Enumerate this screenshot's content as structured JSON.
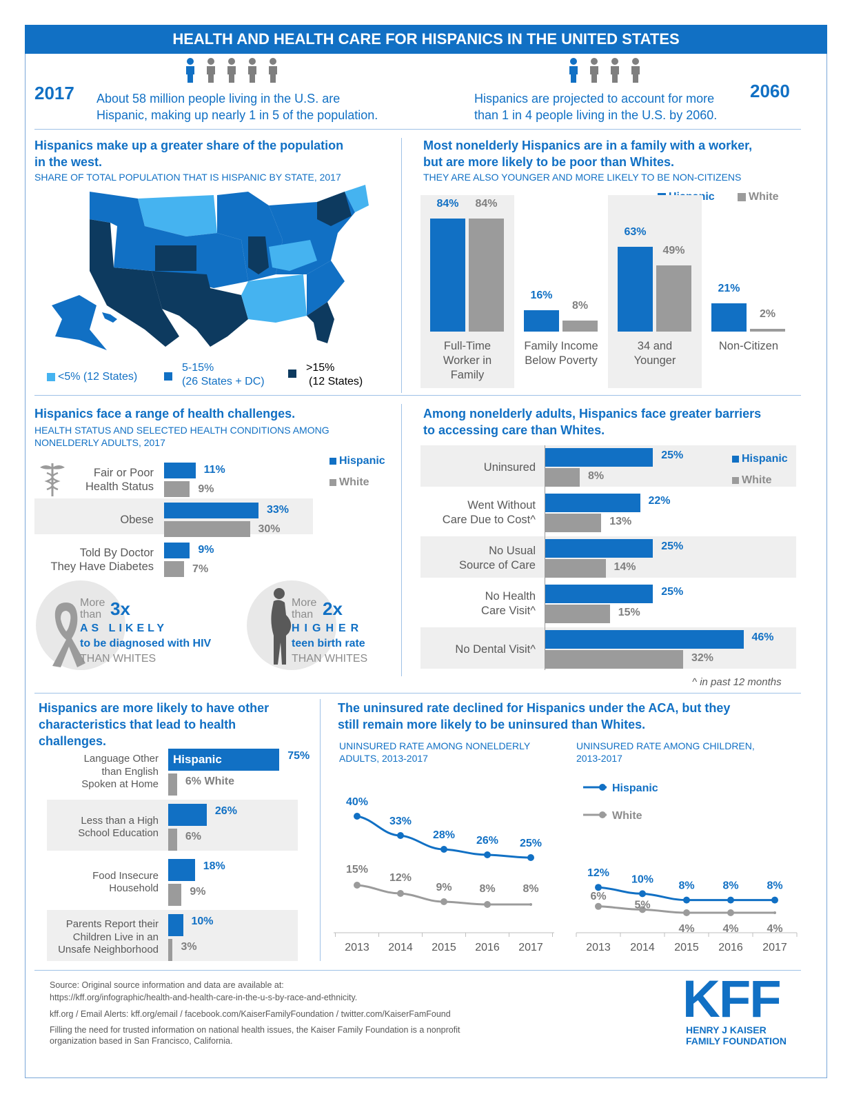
{
  "header": {
    "title": "HEALTH AND HEALTH CARE FOR HISPANICS IN THE UNITED STATES"
  },
  "intro": {
    "left_year": "2017",
    "left_text_1": "About 58 million people living in the U.S. are",
    "left_text_2": "Hispanic, making up nearly 1 in 5 of the population.",
    "right_year": "2060",
    "right_text_1": "Hispanics are projected to account for more",
    "right_text_2": "than 1 in 4 people living in the U.S. by 2060."
  },
  "map_section": {
    "title_1": "Hispanics make up a greater share of the population",
    "title_2": "in the west.",
    "subtitle": "SHARE OF TOTAL POPULATION THAT IS HISPANIC BY STATE, 2017",
    "legend": [
      {
        "label": "<5% (12 States)",
        "color": "#45b3f0"
      },
      {
        "label_1": "5-15%",
        "label_2": "(26 States + DC)",
        "color": "#1170c4"
      },
      {
        "label_1": ">15%",
        "label_2": "(12 States)",
        "color": "#0d3a5f"
      }
    ]
  },
  "colors": {
    "hispanic": "#1170c4",
    "white": "#9b9b9b",
    "dark": "#0d3a5f",
    "light": "#45b3f0"
  },
  "chart_data": [
    {
      "id": "family",
      "type": "bar",
      "title": "Most nonelderly Hispanics are in a family with a worker, but are more likely to be poor than Whites.",
      "subtitle": "THEY ARE ALSO YOUNGER AND MORE LIKELY TO BE NON-CITIZENS",
      "categories": [
        [
          "Full-Time",
          "Worker in",
          "Family"
        ],
        [
          "Family Income",
          "Below Poverty"
        ],
        [
          "34 and",
          "Younger"
        ],
        [
          "Non-Citizen"
        ]
      ],
      "series": [
        {
          "name": "Hispanic",
          "values": [
            84,
            16,
            63,
            21
          ],
          "labels": [
            "84%",
            "16%",
            "63%",
            "21%"
          ]
        },
        {
          "name": "White",
          "values": [
            84,
            8,
            49,
            2
          ],
          "labels": [
            "84%",
            "8%",
            "49%",
            "2%"
          ]
        }
      ],
      "ylim": [
        0,
        100
      ]
    },
    {
      "id": "health",
      "type": "bar",
      "title": "Hispanics face a range of health challenges.",
      "subtitle_1": "HEALTH STATUS AND SELECTED HEALTH CONDITIONS AMONG",
      "subtitle_2": "NONELDERLY ADULTS, 2017",
      "categories": [
        [
          "Fair or Poor",
          "Health Status"
        ],
        [
          "Obese"
        ],
        [
          "Told By Doctor",
          "They Have Diabetes"
        ]
      ],
      "series": [
        {
          "name": "Hispanic",
          "values": [
            11,
            33,
            9
          ],
          "labels": [
            "11%",
            "33%",
            "9%"
          ]
        },
        {
          "name": "White",
          "values": [
            9,
            30,
            7
          ],
          "labels": [
            "9%",
            "30%",
            "7%"
          ]
        }
      ]
    },
    {
      "id": "barriers",
      "type": "bar",
      "title": "Among nonelderly adults, Hispanics face greater barriers to accessing care than Whites.",
      "categories": [
        [
          "Uninsured"
        ],
        [
          "Went Without",
          "Care Due to Cost^"
        ],
        [
          "No Usual",
          "Source of Care"
        ],
        [
          "No Health",
          "Care Visit^"
        ],
        [
          "No Dental Visit^"
        ]
      ],
      "series": [
        {
          "name": "Hispanic",
          "values": [
            25,
            22,
            25,
            25,
            46
          ],
          "labels": [
            "25%",
            "22%",
            "25%",
            "25%",
            "46%"
          ]
        },
        {
          "name": "White",
          "values": [
            8,
            13,
            14,
            15,
            32
          ],
          "labels": [
            "8%",
            "13%",
            "14%",
            "15%",
            "32%"
          ]
        }
      ],
      "note": "^ in past 12 months"
    },
    {
      "id": "characteristics",
      "type": "bar",
      "title": "Hispanics are more likely to have other characteristics that lead to health challenges.",
      "categories": [
        [
          "Language Other",
          "than English",
          "Spoken at Home"
        ],
        [
          "Less than a High",
          "School Education"
        ],
        [
          "Food Insecure",
          "Household"
        ],
        [
          "Parents Report their",
          "Children Live in an",
          "Unsafe Neighborhood"
        ]
      ],
      "series": [
        {
          "name": "Hispanic",
          "values": [
            75,
            26,
            18,
            10
          ],
          "labels": [
            "75%",
            "26%",
            "18%",
            "10%"
          ]
        },
        {
          "name": "White",
          "values": [
            6,
            6,
            9,
            3
          ],
          "labels": [
            "6% White",
            "6%",
            "9%",
            "3%"
          ]
        }
      ],
      "inline_label": "Hispanic"
    },
    {
      "id": "adults_trend",
      "type": "line",
      "title": "UNINSURED RATE AMONG NONELDERLY ADULTS, 2013-2017",
      "x": [
        "2013",
        "2014",
        "2015",
        "2016",
        "2017"
      ],
      "series": [
        {
          "name": "Hispanic",
          "values": [
            40,
            33,
            28,
            26,
            25
          ],
          "labels": [
            "40%",
            "33%",
            "28%",
            "26%",
            "25%"
          ]
        },
        {
          "name": "White",
          "values": [
            15,
            12,
            9,
            8,
            8
          ],
          "labels": [
            "15%",
            "12%",
            "9%",
            "8%",
            "8%"
          ]
        }
      ],
      "ylim": [
        0,
        45
      ]
    },
    {
      "id": "children_trend",
      "type": "line",
      "title": "UNINSURED RATE AMONG CHILDREN, 2013-2017",
      "x": [
        "2013",
        "2014",
        "2015",
        "2016",
        "2017"
      ],
      "series": [
        {
          "name": "Hispanic",
          "values": [
            12,
            10,
            8,
            8,
            8
          ],
          "labels": [
            "12%",
            "10%",
            "8%",
            "8%",
            "8%"
          ]
        },
        {
          "name": "White",
          "values": [
            6,
            5,
            4,
            4,
            4
          ],
          "labels": [
            "6%",
            "5%",
            "4%",
            "4%",
            "4%"
          ]
        }
      ],
      "ylim": [
        0,
        20
      ]
    }
  ],
  "legend_labels": {
    "hispanic": "Hispanic",
    "white": "White"
  },
  "callouts": {
    "hiv": {
      "prefix_1": "More",
      "prefix_2": "than",
      "multiplier": "3x",
      "line_1": "AS LIKELY",
      "line_2": "to be diagnosed with HIV",
      "line_3": "THAN WHITES"
    },
    "teen": {
      "prefix_1": "More",
      "prefix_2": "than",
      "multiplier": "2x",
      "line_1": "HIGHER",
      "line_2": "teen birth rate",
      "line_3": "THAN WHITES"
    }
  },
  "trend_section": {
    "title_1": "The uninsured rate declined for Hispanics under the ACA, but they",
    "title_2": "still remain more likely to be uninsured than Whites.",
    "left_sub_1": "UNINSURED RATE AMONG NONELDERLY",
    "left_sub_2": "ADULTS, 2013-2017",
    "right_sub_1": "UNINSURED RATE AMONG CHILDREN,",
    "right_sub_2": "2013-2017"
  },
  "footer": {
    "source_1": "Source: Original source information and data are available at:",
    "source_2": "https://kff.org/infographic/health-and-health-care-in-the-u-s-by-race-and-ethnicity.",
    "links": "kff.org / Email Alerts: kff.org/email / facebook.com/KaiserFamilyFoundation / twitter.com/KaiserFamFound",
    "about_1": "Filling the need for trusted information on national health issues, the Kaiser Family Foundation is a nonprofit",
    "about_2": "organization based in San Francisco, California.",
    "logo": "KFF",
    "logo_sub_1": "HENRY J KAISER",
    "logo_sub_2": "FAMILY FOUNDATION"
  }
}
